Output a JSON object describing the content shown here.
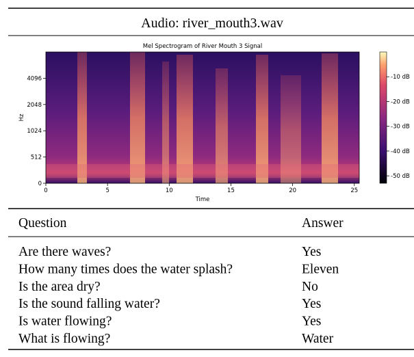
{
  "header": {
    "title": "Audio: river_mouth3.wav"
  },
  "chart_data": {
    "type": "heatmap",
    "title": "Mel Spectrogram of River Mouth 3 Signal",
    "x_label": "Time",
    "y_label": "Hz",
    "xlim": [
      0,
      25.4
    ],
    "xticks": [
      0,
      5,
      10,
      15,
      20,
      25
    ],
    "ylim": [
      0,
      8192
    ],
    "yscale": "symlog",
    "linthresh": 512,
    "yticks": [
      0,
      512,
      1024,
      2048,
      4096
    ],
    "colorbar": {
      "lim": [
        -53,
        0
      ],
      "ticks": [
        {
          "value": -10,
          "label": "-10 dB"
        },
        {
          "value": -20,
          "label": "-20 dB"
        },
        {
          "value": -30,
          "label": "-30 dB"
        },
        {
          "value": -40,
          "label": "-40 dB"
        },
        {
          "value": -50,
          "label": "-50 dB"
        }
      ]
    }
  },
  "table": {
    "columns": [
      "Question",
      "Answer"
    ],
    "rows": [
      [
        "Are there waves?",
        "Yes"
      ],
      [
        "How many times does the water splash?",
        "Eleven"
      ],
      [
        "Is the area dry?",
        "No"
      ],
      [
        "Is the sound falling water?",
        "Yes"
      ],
      [
        "Is water flowing?",
        "Yes"
      ],
      [
        "What is flowing?",
        "Water"
      ]
    ]
  }
}
